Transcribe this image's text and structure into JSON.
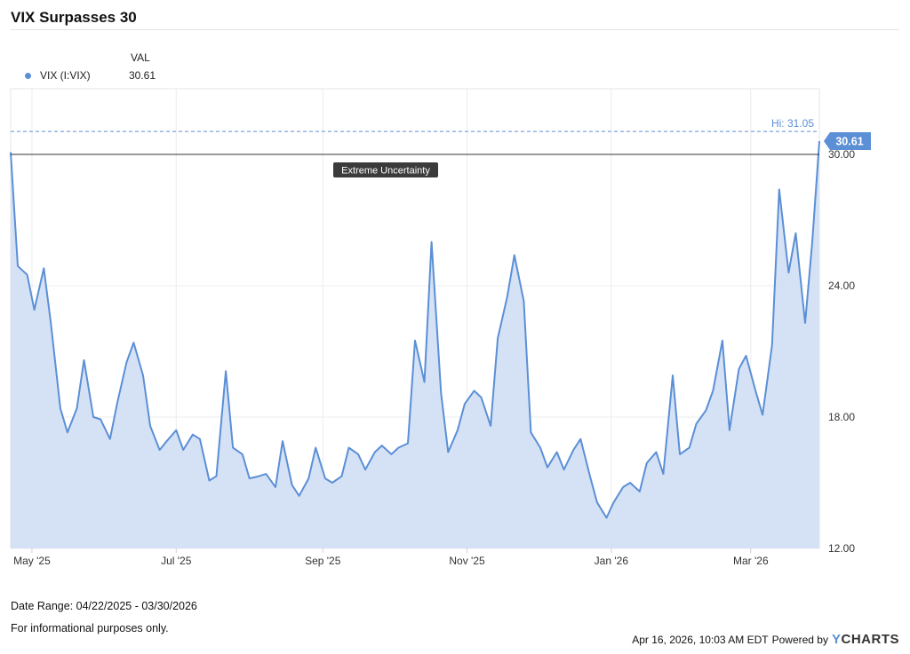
{
  "title": "VIX Surpasses 30",
  "legend": {
    "column_header": "VAL",
    "series_name": "VIX (I:VIX)",
    "series_value": "30.61",
    "series_color": "#5b8fd6"
  },
  "chart_data": {
    "type": "area",
    "title": "VIX Surpasses 30",
    "series": [
      {
        "name": "VIX (I:VIX)",
        "color": "#5b8fd6",
        "x": [
          "2025-04-22",
          "2025-04-25",
          "2025-04-29",
          "2025-05-02",
          "2025-05-06",
          "2025-05-09",
          "2025-05-13",
          "2025-05-16",
          "2025-05-20",
          "2025-05-23",
          "2025-05-27",
          "2025-05-30",
          "2025-06-03",
          "2025-06-06",
          "2025-06-10",
          "2025-06-13",
          "2025-06-17",
          "2025-06-20",
          "2025-06-24",
          "2025-06-27",
          "2025-07-01",
          "2025-07-04",
          "2025-07-08",
          "2025-07-11",
          "2025-07-15",
          "2025-07-18",
          "2025-07-22",
          "2025-07-25",
          "2025-07-29",
          "2025-08-01",
          "2025-08-05",
          "2025-08-08",
          "2025-08-12",
          "2025-08-15",
          "2025-08-19",
          "2025-08-22",
          "2025-08-26",
          "2025-08-29",
          "2025-09-02",
          "2025-09-05",
          "2025-09-09",
          "2025-09-12",
          "2025-09-16",
          "2025-09-19",
          "2025-09-23",
          "2025-09-26",
          "2025-09-30",
          "2025-10-03",
          "2025-10-07",
          "2025-10-10",
          "2025-10-14",
          "2025-10-17",
          "2025-10-21",
          "2025-10-24",
          "2025-10-28",
          "2025-10-31",
          "2025-11-04",
          "2025-11-07",
          "2025-11-11",
          "2025-11-14",
          "2025-11-18",
          "2025-11-21",
          "2025-11-25",
          "2025-11-28",
          "2025-12-02",
          "2025-12-05",
          "2025-12-09",
          "2025-12-12",
          "2025-12-16",
          "2025-12-19",
          "2025-12-23",
          "2025-12-26",
          "2025-12-30",
          "2026-01-02",
          "2026-01-06",
          "2026-01-09",
          "2026-01-13",
          "2026-01-16",
          "2026-01-20",
          "2026-01-23",
          "2026-01-27",
          "2026-01-30",
          "2026-02-03",
          "2026-02-06",
          "2026-02-10",
          "2026-02-13",
          "2026-02-17",
          "2026-02-20",
          "2026-02-24",
          "2026-02-27",
          "2026-03-03",
          "2026-03-06",
          "2026-03-10",
          "2026-03-13",
          "2026-03-17",
          "2026-03-20",
          "2026-03-24",
          "2026-03-27",
          "2026-03-30"
        ],
        "values": [
          30.1,
          24.9,
          24.5,
          22.9,
          24.8,
          22.3,
          18.4,
          17.3,
          18.4,
          20.6,
          18.0,
          17.9,
          17.0,
          18.6,
          20.5,
          21.4,
          19.9,
          17.6,
          16.5,
          16.9,
          17.4,
          16.5,
          17.2,
          17.0,
          15.1,
          15.3,
          20.1,
          16.6,
          16.3,
          15.2,
          15.3,
          15.4,
          14.8,
          16.9,
          14.9,
          14.4,
          15.2,
          16.6,
          15.2,
          15.0,
          15.3,
          16.6,
          16.3,
          15.6,
          16.4,
          16.7,
          16.3,
          16.6,
          16.8,
          21.5,
          19.6,
          26.0,
          19.1,
          16.4,
          17.4,
          18.6,
          19.2,
          18.9,
          17.6,
          21.6,
          23.5,
          25.4,
          23.3,
          17.3,
          16.6,
          15.7,
          16.4,
          15.6,
          16.5,
          17.0,
          15.3,
          14.1,
          13.4,
          14.1,
          14.8,
          15.0,
          14.6,
          15.9,
          16.4,
          15.4,
          19.9,
          16.3,
          16.6,
          17.7,
          18.3,
          19.2,
          21.5,
          17.4,
          20.2,
          20.8,
          19.2,
          18.1,
          21.3,
          28.4,
          24.6,
          26.4,
          22.3,
          26.0,
          30.61
        ],
        "hi_label": "Hi: 31.05",
        "hi_value": 31.05,
        "last_value_label": "30.61"
      }
    ],
    "reference_line": {
      "value": 30,
      "label": "Extreme Uncertainty"
    },
    "x_tick_labels": [
      "May '25",
      "Jul '25",
      "Sep '25",
      "Nov '25",
      "Jan '26",
      "Mar '26"
    ],
    "y_tick_labels": [
      "12.00",
      "18.00",
      "24.00",
      "30.00"
    ],
    "ylim": [
      12,
      33
    ],
    "grid": true
  },
  "footer": {
    "date_range": "Date Range: 04/22/2025 - 03/30/2026",
    "disclaimer": "For informational purposes only.",
    "timestamp": "Apr 16, 2026, 10:03 AM EDT",
    "powered_by": "Powered by",
    "brand_prefix": "Y",
    "brand_rest": "CHARTS"
  }
}
